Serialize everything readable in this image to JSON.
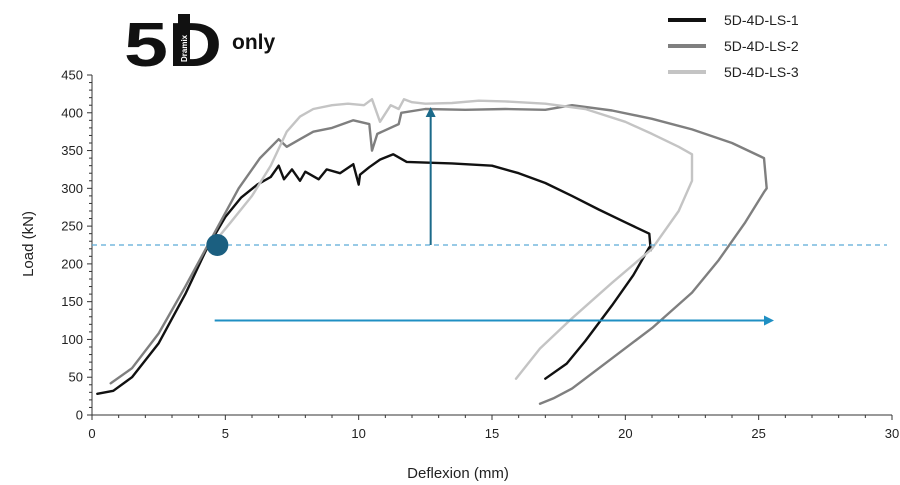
{
  "logo": {
    "number": "5",
    "letter": "D",
    "brand": "Dramix",
    "tag": "only"
  },
  "chart_data": {
    "type": "line",
    "title": "",
    "xlabel": "Deflexion (mm)",
    "ylabel": "Load (kN)",
    "xlim": [
      0,
      30
    ],
    "ylim": [
      0,
      450
    ],
    "xticks": [
      0,
      5,
      10,
      15,
      20,
      25,
      30
    ],
    "yticks": [
      0,
      50,
      100,
      150,
      200,
      250,
      300,
      350,
      400,
      450
    ],
    "grid": false,
    "legend_position": "top-right",
    "series": [
      {
        "name": "5D-4D-LS-1",
        "color": "#111111",
        "x": [
          0.2,
          0.8,
          1.5,
          2.5,
          3.5,
          4.3,
          5.0,
          5.6,
          6.2,
          6.7,
          7.0,
          7.2,
          7.5,
          7.8,
          8.0,
          8.5,
          8.8,
          9.3,
          9.8,
          10.0,
          10.05,
          10.4,
          10.8,
          11.3,
          11.8,
          12.5,
          13.5,
          15.0,
          16.0,
          17.0,
          18.0,
          19.0,
          20.0,
          20.9,
          20.95,
          20.9,
          20.3,
          19.5,
          18.5,
          17.8,
          17.0
        ],
        "y": [
          28,
          32,
          50,
          95,
          160,
          220,
          262,
          288,
          305,
          315,
          330,
          312,
          325,
          310,
          322,
          312,
          325,
          320,
          332,
          305,
          318,
          328,
          338,
          345,
          335,
          334,
          333,
          330,
          320,
          307,
          290,
          272,
          255,
          240,
          218,
          222,
          185,
          145,
          98,
          68,
          48
        ]
      },
      {
        "name": "5D-4D-LS-2",
        "color": "#7f7f7f",
        "x": [
          0.7,
          1.5,
          2.5,
          3.5,
          4.5,
          5.5,
          6.3,
          7.0,
          7.3,
          7.8,
          8.3,
          9.0,
          9.8,
          10.4,
          10.5,
          10.7,
          11.5,
          11.6,
          12.5,
          14.0,
          15.5,
          17.0,
          18.0,
          19.5,
          21.0,
          22.5,
          24.0,
          25.2,
          25.3,
          25.2,
          24.5,
          23.5,
          22.5,
          21.0,
          19.5,
          18.0,
          17.3,
          16.8
        ],
        "y": [
          42,
          62,
          108,
          170,
          235,
          300,
          340,
          365,
          355,
          365,
          375,
          380,
          390,
          385,
          350,
          372,
          385,
          400,
          405,
          404,
          405,
          404,
          410,
          403,
          392,
          378,
          360,
          340,
          300,
          295,
          255,
          205,
          162,
          115,
          75,
          35,
          22,
          15
        ]
      },
      {
        "name": "5D-4D-LS-3",
        "color": "#c4c4c4",
        "x": [
          4.5,
          5.2,
          6.0,
          6.7,
          7.3,
          7.8,
          8.3,
          9.0,
          9.6,
          10.2,
          10.5,
          10.8,
          11.2,
          11.5,
          11.7,
          12.0,
          12.5,
          13.5,
          14.5,
          15.5,
          17.0,
          18.5,
          20.0,
          21.0,
          22.0,
          22.5,
          22.5,
          22.0,
          21.0,
          19.5,
          18.0,
          16.8,
          15.9
        ],
        "y": [
          225,
          255,
          290,
          330,
          375,
          395,
          405,
          410,
          412,
          410,
          418,
          388,
          410,
          405,
          418,
          414,
          412,
          413,
          416,
          415,
          412,
          405,
          388,
          372,
          355,
          345,
          310,
          270,
          220,
          175,
          128,
          88,
          48
        ]
      }
    ],
    "annotations": [
      {
        "type": "reference-line",
        "axis": "y",
        "value": 225,
        "style": "dashed",
        "color": "#5aaad8"
      },
      {
        "type": "marker",
        "x": 4.7,
        "y": 225,
        "color": "#1b5f80"
      },
      {
        "type": "arrow",
        "from": [
          12.7,
          225
        ],
        "to": [
          12.7,
          405
        ],
        "color": "#1b6a8a"
      },
      {
        "type": "arrow",
        "from": [
          4.6,
          125
        ],
        "to": [
          25.5,
          125
        ],
        "color": "#1f8fc3"
      }
    ]
  }
}
